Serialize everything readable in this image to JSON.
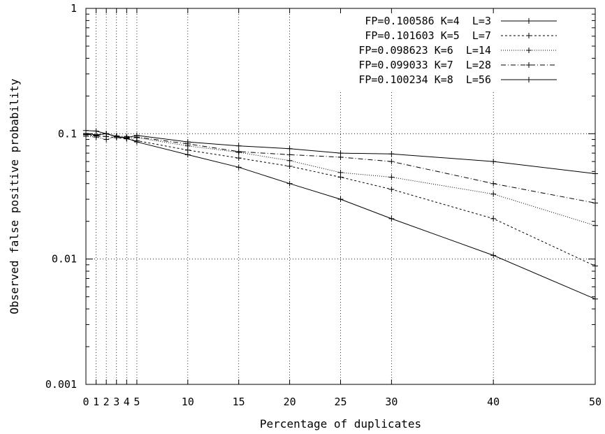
{
  "chart_data": {
    "type": "line",
    "title": "",
    "xlabel": "Percentage of duplicates",
    "ylabel": "Observed false positive probability",
    "xlim": [
      0,
      50
    ],
    "ylim": [
      0.001,
      1
    ],
    "yscale": "log",
    "x_ticks": [
      0,
      1,
      2,
      3,
      4,
      5,
      10,
      15,
      20,
      25,
      30,
      40,
      50
    ],
    "x_tick_labels": [
      "0",
      "1",
      "2",
      "3",
      "4",
      "5",
      "10",
      "15",
      "20",
      "25",
      "30",
      "40",
      "50"
    ],
    "y_ticks": [
      0.001,
      0.01,
      0.1,
      1
    ],
    "y_tick_labels": [
      "0.001",
      "0.01",
      "0.1",
      "1"
    ],
    "grid": true,
    "legend_position": "top-right",
    "x": [
      0,
      1,
      2,
      3,
      4,
      5,
      10,
      15,
      20,
      25,
      30,
      40,
      50
    ],
    "series": [
      {
        "name": "FP=0.100586 K=4  L=3",
        "dash": "solid",
        "values": [
          0.1005,
          0.098,
          0.1,
          0.095,
          0.092,
          0.086,
          0.068,
          0.054,
          0.04,
          0.03,
          0.021,
          0.0107,
          0.0048
        ]
      },
      {
        "name": "FP=0.101603 K=5  L=7",
        "dash": "dashed",
        "values": [
          0.098,
          0.096,
          0.095,
          0.093,
          0.091,
          0.088,
          0.074,
          0.064,
          0.055,
          0.045,
          0.036,
          0.021,
          0.0088
        ]
      },
      {
        "name": "FP=0.098623 K=6  L=14",
        "dash": "dotted",
        "values": [
          0.0955,
          0.094,
          0.09,
          0.095,
          0.092,
          0.093,
          0.08,
          0.071,
          0.061,
          0.049,
          0.045,
          0.033,
          0.0185
        ]
      },
      {
        "name": "FP=0.099033 K=7  L=28",
        "dash": "dashdot",
        "values": [
          0.099,
          0.097,
          0.1,
          0.096,
          0.095,
          0.094,
          0.083,
          0.072,
          0.068,
          0.065,
          0.06,
          0.04,
          0.028
        ]
      },
      {
        "name": "FP=0.100234 K=8  L=56",
        "dash": "solid",
        "values": [
          0.106,
          0.105,
          0.1,
          0.095,
          0.093,
          0.097,
          0.086,
          0.08,
          0.076,
          0.07,
          0.069,
          0.06,
          0.048
        ]
      }
    ]
  }
}
